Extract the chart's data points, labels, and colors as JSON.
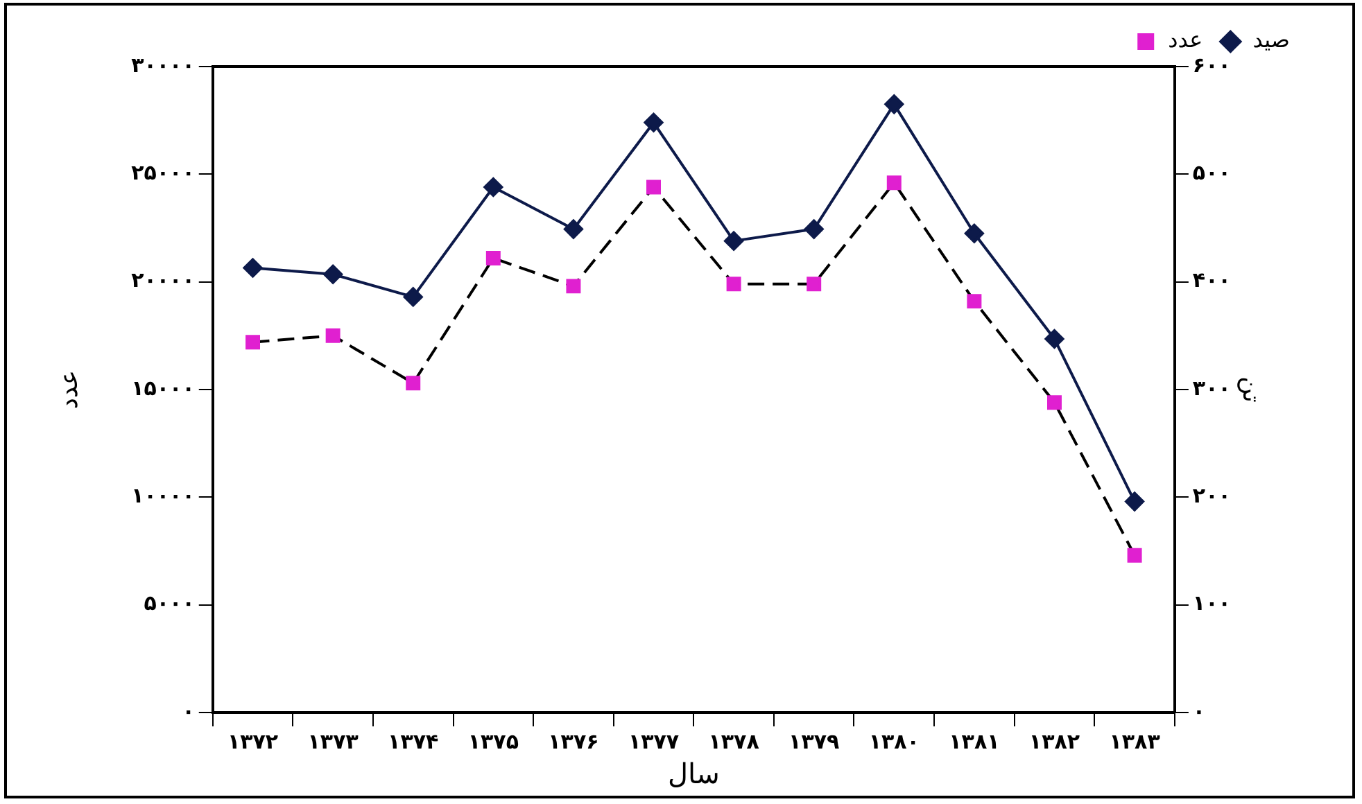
{
  "chart_data": {
    "type": "line",
    "xlabel": "سال",
    "ylabel": "عدد",
    "y2label": "تن",
    "categories": [
      "۱۳۷۲",
      "۱۳۷۳",
      "۱۳۷۴",
      "۱۳۷۵",
      "۱۳۷۶",
      "۱۳۷۷",
      "۱۳۷۸",
      "۱۳۷۹",
      "۱۳۸۰",
      "۱۳۸۱",
      "۱۳۸۲",
      "۱۳۸۳"
    ],
    "series": [
      {
        "name": "صید",
        "color": "#0d1a4a",
        "axis": "y2",
        "marker": "diamond",
        "line_style": "solid",
        "values": [
          413,
          407,
          386,
          488,
          449,
          548,
          438,
          449,
          565,
          445,
          347,
          196
        ]
      },
      {
        "name": "عدد",
        "color": "#e020d0",
        "axis": "y",
        "marker": "square",
        "line_style": "dashed",
        "values": [
          17200,
          17500,
          15300,
          21100,
          19800,
          24400,
          19900,
          19900,
          24600,
          19100,
          14400,
          7300
        ]
      }
    ],
    "ylim": [
      0,
      30000
    ],
    "yticks": [
      {
        "value": 0,
        "label": "۰"
      },
      {
        "value": 5000,
        "label": "۵۰۰۰"
      },
      {
        "value": 10000,
        "label": "۱۰۰۰۰"
      },
      {
        "value": 15000,
        "label": "۱۵۰۰۰"
      },
      {
        "value": 20000,
        "label": "۲۰۰۰۰"
      },
      {
        "value": 25000,
        "label": "۲۵۰۰۰"
      },
      {
        "value": 30000,
        "label": "۳۰۰۰۰"
      }
    ],
    "y2lim": [
      0,
      600
    ],
    "y2ticks": [
      {
        "value": 0,
        "label": "۰"
      },
      {
        "value": 100,
        "label": "۱۰۰"
      },
      {
        "value": 200,
        "label": "۲۰۰"
      },
      {
        "value": 300,
        "label": "۳۰۰"
      },
      {
        "value": 400,
        "label": "۴۰۰"
      },
      {
        "value": 500,
        "label": "۵۰۰"
      },
      {
        "value": 600,
        "label": "۶۰۰"
      }
    ],
    "grid": false,
    "legend": "top right"
  }
}
